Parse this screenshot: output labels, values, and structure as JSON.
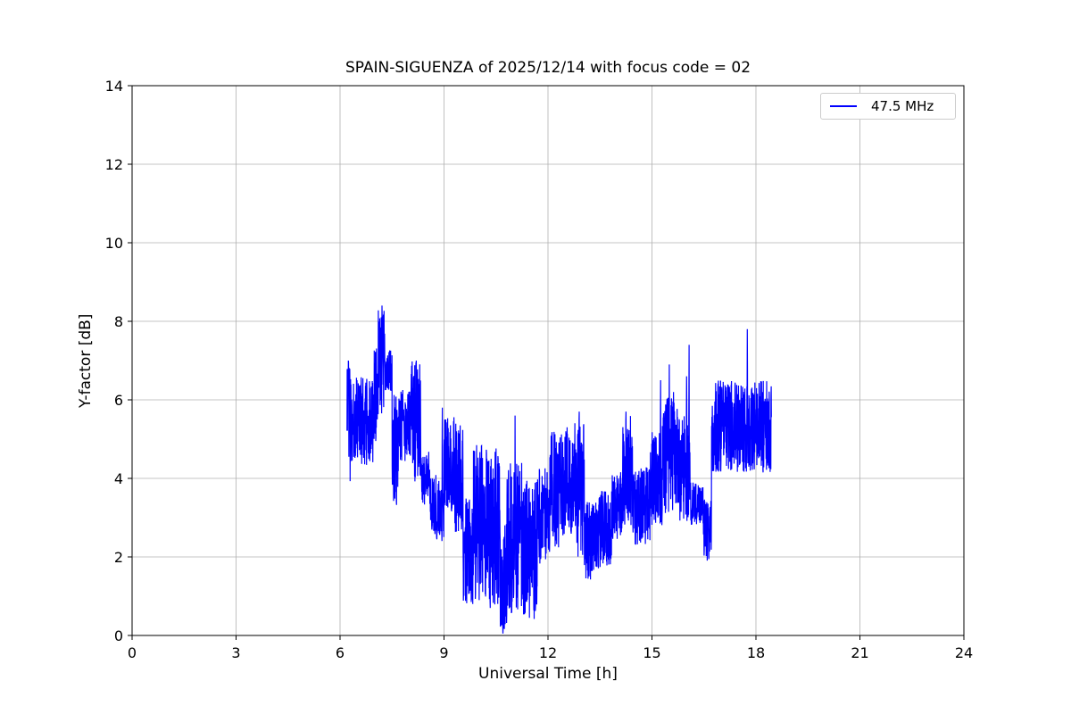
{
  "chart_data": {
    "type": "line",
    "title": "SPAIN-SIGUENZA of 2025/12/14 with focus code = 02",
    "xlabel": "Universal Time [h]",
    "ylabel": "Y-factor [dB]",
    "xlim": [
      0,
      24
    ],
    "ylim": [
      0,
      14
    ],
    "xticks": [
      0,
      3,
      6,
      9,
      12,
      15,
      18,
      21,
      24
    ],
    "yticks": [
      0,
      2,
      4,
      6,
      8,
      10,
      12,
      14
    ],
    "grid": true,
    "grid_color": "#b0b0b0",
    "axis_color": "#000000",
    "legend": {
      "position": "upper right",
      "entries": [
        {
          "label": "47.5 MHz",
          "color": "#0000ff"
        }
      ]
    },
    "series": [
      {
        "name": "47.5 MHz",
        "color": "#0000ff",
        "t_start": 6.2,
        "t_end": 18.45,
        "envelope": [
          [
            6.2,
            6.32,
            3.9,
            7.0
          ],
          [
            6.32,
            6.95,
            4.3,
            6.6
          ],
          [
            6.95,
            7.1,
            4.6,
            7.4
          ],
          [
            7.1,
            7.3,
            5.6,
            8.4
          ],
          [
            7.3,
            7.5,
            6.2,
            7.3
          ],
          [
            7.5,
            7.68,
            3.2,
            6.2
          ],
          [
            7.68,
            8.05,
            4.4,
            6.3
          ],
          [
            8.05,
            8.35,
            3.9,
            7.0
          ],
          [
            8.35,
            8.6,
            3.3,
            4.7
          ],
          [
            8.6,
            9.0,
            2.4,
            4.1
          ],
          [
            9.0,
            9.3,
            3.0,
            5.6
          ],
          [
            9.3,
            9.55,
            2.6,
            5.4
          ],
          [
            9.55,
            9.85,
            0.8,
            3.5
          ],
          [
            9.85,
            10.3,
            0.9,
            4.9
          ],
          [
            10.3,
            10.62,
            0.6,
            4.8
          ],
          [
            10.62,
            10.82,
            0.1,
            3.2
          ],
          [
            10.82,
            11.25,
            0.5,
            4.4
          ],
          [
            11.25,
            11.7,
            0.4,
            4.0
          ],
          [
            11.7,
            12.05,
            1.8,
            4.3
          ],
          [
            12.05,
            12.45,
            2.2,
            5.2
          ],
          [
            12.45,
            12.75,
            2.4,
            5.2
          ],
          [
            12.75,
            13.05,
            2.0,
            5.5
          ],
          [
            13.05,
            13.45,
            1.4,
            3.4
          ],
          [
            13.45,
            13.85,
            1.7,
            3.7
          ],
          [
            13.85,
            14.15,
            2.4,
            4.2
          ],
          [
            14.15,
            14.45,
            2.8,
            5.6
          ],
          [
            14.45,
            14.95,
            2.3,
            4.3
          ],
          [
            14.95,
            15.3,
            2.8,
            5.2
          ],
          [
            15.3,
            15.75,
            3.0,
            6.1
          ],
          [
            15.75,
            16.1,
            2.9,
            5.6
          ],
          [
            16.1,
            16.48,
            2.8,
            3.9
          ],
          [
            16.48,
            16.72,
            1.9,
            3.5
          ],
          [
            16.72,
            18.45,
            4.15,
            6.5
          ]
        ],
        "peaks": [
          [
            6.24,
            7.0
          ],
          [
            7.21,
            8.4
          ],
          [
            8.2,
            7.0
          ],
          [
            8.95,
            5.8
          ],
          [
            9.05,
            5.5
          ],
          [
            10.7,
            0.05
          ],
          [
            11.05,
            5.6
          ],
          [
            12.55,
            5.3
          ],
          [
            12.9,
            5.7
          ],
          [
            14.25,
            5.7
          ],
          [
            15.25,
            6.5
          ],
          [
            15.5,
            6.9
          ],
          [
            15.62,
            6.2
          ],
          [
            16.0,
            6.6
          ],
          [
            16.07,
            7.4
          ],
          [
            17.75,
            7.8
          ]
        ]
      }
    ]
  }
}
